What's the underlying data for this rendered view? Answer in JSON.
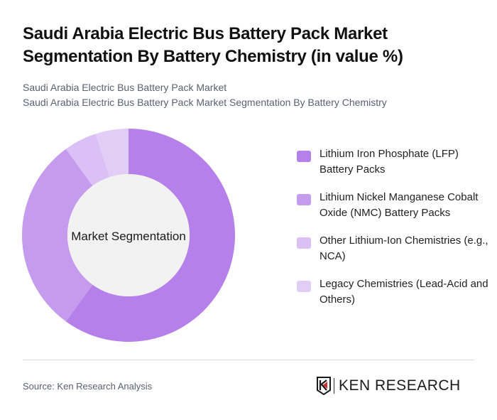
{
  "header": {
    "title": "Saudi Arabia Electric Bus Battery Pack Market Segmentation By Battery Chemistry (in value %)",
    "subtitle_line1": "Saudi Arabia Electric Bus Battery Pack Market",
    "subtitle_line2": "Saudi Arabia Electric Bus Battery Pack Market Segmentation By Battery Chemistry"
  },
  "chart": {
    "center_label": "Market Segmentation"
  },
  "legend": {
    "items": [
      {
        "label": "Lithium Iron Phosphate (LFP) Battery Packs",
        "color": "#b580ea"
      },
      {
        "label": "Lithium Nickel Manganese Cobalt Oxide (NMC) Battery Packs",
        "color": "#c59bed"
      },
      {
        "label": "Other Lithium-Ion Chemistries (e.g., NCA)",
        "color": "#dbc0f5"
      },
      {
        "label": "Legacy Chemistries (Lead-Acid and Others)",
        "color": "#e2cdf7"
      }
    ]
  },
  "footer": {
    "source": "Source: Ken Research Analysis",
    "logo_text": "KEN RESEARCH"
  },
  "chart_data": {
    "type": "pie",
    "subtype": "donut",
    "title": "Saudi Arabia Electric Bus Battery Pack Market Segmentation By Battery Chemistry (in value %)",
    "center_label": "Market Segmentation",
    "categories": [
      "Lithium Iron Phosphate (LFP) Battery Packs",
      "Lithium Nickel Manganese Cobalt Oxide (NMC) Battery Packs",
      "Other Lithium-Ion Chemistries (e.g., NCA)",
      "Legacy Chemistries (Lead-Acid and Others)"
    ],
    "values": [
      60,
      30,
      5,
      5
    ],
    "colors": [
      "#b580ea",
      "#c59bed",
      "#dbc0f5",
      "#e2cdf7"
    ],
    "unit": "%",
    "legend_position": "right",
    "start_angle": "12 o'clock, clockwise"
  }
}
